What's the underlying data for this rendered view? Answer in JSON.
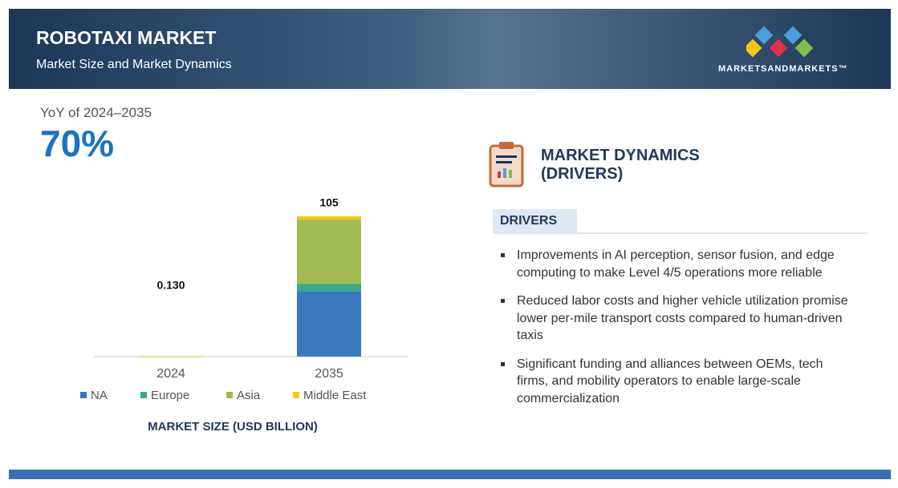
{
  "header": {
    "title": "ROBOTAXI MARKET",
    "subtitle": "Market Size and Market Dynamics",
    "logo": "MARKETSANDMARKETS™"
  },
  "growth": {
    "label": "YoY of 2024–2035",
    "value": "70%"
  },
  "chart_data": {
    "type": "stacked_bar",
    "title": "MARKET SIZE (USD BILLION)",
    "categories": [
      "2024",
      "2035"
    ],
    "series": [
      {
        "name": "NA",
        "color": "#3a78bd",
        "values": [
          0.04,
          49
        ]
      },
      {
        "name": "Europe",
        "color": "#3aa88a",
        "values": [
          0.01,
          5.5
        ]
      },
      {
        "name": "Asia",
        "color": "#a2bb52",
        "values": [
          0.075,
          48
        ]
      },
      {
        "name": "Middle East",
        "color": "#f5c518",
        "values": [
          0.005,
          2.5
        ]
      }
    ],
    "totals": [
      0.13,
      105
    ],
    "total_labels": [
      "0.130",
      "105"
    ]
  },
  "dynamics": {
    "title_line1": "MARKET DYNAMICS",
    "title_line2": "(DRIVERS)",
    "tab": "DRIVERS",
    "drivers": [
      "Improvements in AI perception, sensor fusion, and edge computing to make Level 4/5 operations more reliable",
      "Reduced labor costs and higher vehicle utilization promise lower per-mile transport costs compared to human-driven taxis",
      "Significant funding and alliances between OEMs, tech firms, and mobility operators to enable large-scale commercialization"
    ]
  }
}
